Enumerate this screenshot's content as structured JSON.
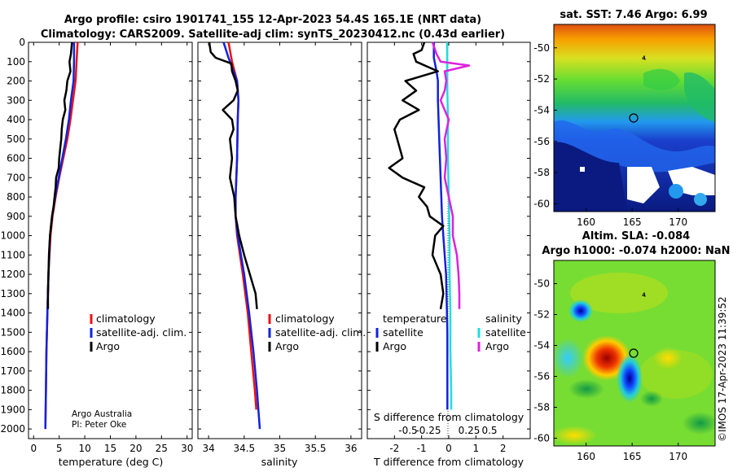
{
  "header": {
    "title_line1": "Argo profile: csiro 1901741_155 12-Apr-2023 54.4S 165.1E (NRT data)",
    "title_line2": "Climatology: CARS2009. Satellite-adj clim: synTS_20230412.nc (0.43d earlier)"
  },
  "colors": {
    "climatology": "#ee1111",
    "satellite": "#1122dd",
    "argo": "#000000",
    "sat_salinity": "#22dddd",
    "argo_salinity_diff": "#dd22dd"
  },
  "footer": {
    "credit1": "Argo Australia",
    "credit2": "PI: Peter Oke",
    "imos_stamp": "©IMOS 17-Apr-2023 11:39:52"
  },
  "legends": {
    "climatology": "climatology",
    "satellite_adj": "satellite-adj. clim.",
    "argo": "Argo",
    "diff_temperature": "temperature",
    "diff_salinity": "salinity",
    "satellite": "satellite"
  },
  "chart_data": [
    {
      "type": "line",
      "id": "temperature",
      "xlabel": "temperature (deg C)",
      "ylabel": "",
      "xlim": [
        -1,
        31
      ],
      "ylim": [
        2050,
        0
      ],
      "xticks": [
        "0",
        "5",
        "10",
        "15",
        "20",
        "25",
        "30"
      ],
      "yticks": [
        "0",
        "100",
        "200",
        "300",
        "400",
        "500",
        "600",
        "700",
        "800",
        "900",
        "1000",
        "1100",
        "1200",
        "1300",
        "1400",
        "1500",
        "1600",
        "1700",
        "1800",
        "1900",
        "2000"
      ],
      "series": [
        {
          "name": "climatology",
          "depth": [
            0,
            100,
            200,
            300,
            400,
            500,
            600,
            700,
            800,
            900,
            1000,
            1200,
            1400,
            1600,
            1800,
            2000
          ],
          "values": [
            8.6,
            8.4,
            8.2,
            7.7,
            7.2,
            6.6,
            5.8,
            5.0,
            4.3,
            3.7,
            3.3,
            2.9,
            2.7,
            2.5,
            2.4,
            2.3
          ]
        },
        {
          "name": "satellite-adj. clim.",
          "depth": [
            0,
            100,
            200,
            300,
            400,
            500,
            600,
            700,
            800,
            900,
            1000,
            1200,
            1400,
            1600,
            1800,
            2000
          ],
          "values": [
            7.9,
            7.9,
            7.8,
            7.3,
            6.9,
            6.3,
            5.6,
            4.9,
            4.2,
            3.6,
            3.2,
            2.9,
            2.7,
            2.5,
            2.4,
            2.3
          ]
        },
        {
          "name": "Argo",
          "depth": [
            0,
            60,
            100,
            150,
            200,
            250,
            300,
            350,
            400,
            450,
            500,
            550,
            600,
            650,
            700,
            750,
            800,
            850,
            900,
            950,
            1000,
            1100,
            1200,
            1300,
            1380
          ],
          "values": [
            7.5,
            7.3,
            7.0,
            7.2,
            6.6,
            6.4,
            6.0,
            6.2,
            5.7,
            5.5,
            5.4,
            5.2,
            5.0,
            4.9,
            4.4,
            4.3,
            4.1,
            3.9,
            3.6,
            3.4,
            3.2,
            3.0,
            2.9,
            2.8,
            2.8
          ]
        }
      ]
    },
    {
      "type": "line",
      "id": "salinity",
      "xlabel": "salinity",
      "ylabel": "",
      "xlim": [
        33.85,
        36.15
      ],
      "ylim": [
        2050,
        0
      ],
      "xticks": [
        "34",
        "34.5",
        "35",
        "35.5",
        "36"
      ],
      "series": [
        {
          "name": "climatology",
          "depth": [
            0,
            100,
            200,
            300,
            400,
            600,
            800,
            900,
            1000,
            1200,
            1400,
            1600,
            1800,
            1900
          ],
          "values": [
            34.28,
            34.33,
            34.4,
            34.42,
            34.41,
            34.4,
            34.38,
            34.38,
            34.4,
            34.48,
            34.55,
            34.6,
            34.65,
            34.67
          ]
        },
        {
          "name": "satellite-adj. clim.",
          "depth": [
            0,
            80,
            150,
            200,
            300,
            400,
            600,
            800,
            900,
            1000,
            1200,
            1400,
            1600,
            1800,
            2000
          ],
          "values": [
            34.21,
            34.28,
            34.35,
            34.4,
            34.42,
            34.41,
            34.4,
            34.38,
            34.38,
            34.41,
            34.5,
            34.57,
            34.63,
            34.68,
            34.72
          ]
        },
        {
          "name": "Argo",
          "depth": [
            0,
            50,
            80,
            110,
            150,
            200,
            250,
            300,
            350,
            400,
            450,
            500,
            600,
            700,
            800,
            900,
            1000,
            1100,
            1200,
            1300,
            1380
          ],
          "values": [
            34.01,
            34.03,
            34.1,
            34.32,
            34.33,
            34.38,
            34.41,
            34.35,
            34.2,
            34.33,
            34.35,
            34.3,
            34.33,
            34.3,
            34.36,
            34.38,
            34.43,
            34.5,
            34.58,
            34.66,
            34.68
          ]
        }
      ]
    },
    {
      "type": "line",
      "id": "difference",
      "xlabel": "T difference from climatology",
      "x2label": "S difference from climatology",
      "xlim": [
        -3,
        3
      ],
      "ylim": [
        2050,
        0
      ],
      "xticks": [
        "-2",
        "-1",
        "0",
        "1",
        "2"
      ],
      "x2lim": [
        -1,
        1
      ],
      "x2ticks": [
        "-0.5",
        "-0.25",
        "0",
        "0.25",
        "0.5"
      ],
      "series": [
        {
          "name": "temperature satellite",
          "depth": [
            0,
            80,
            150,
            200,
            300,
            500,
            700,
            900,
            1000,
            1200,
            1500,
            1700,
            1900
          ],
          "values": [
            -0.55,
            -0.55,
            -0.45,
            -0.4,
            -0.4,
            -0.35,
            -0.3,
            -0.25,
            -0.2,
            -0.1,
            -0.05,
            -0.05,
            -0.05
          ]
        },
        {
          "name": "temperature Argo",
          "depth": [
            0,
            40,
            60,
            100,
            150,
            200,
            250,
            300,
            350,
            400,
            450,
            500,
            550,
            600,
            650,
            700,
            750,
            800,
            850,
            900,
            950,
            1000,
            1100,
            1200,
            1300,
            1380
          ],
          "values": [
            -0.9,
            -1.0,
            -1.3,
            -1.2,
            -0.4,
            -1.6,
            -1.2,
            -1.7,
            -1.1,
            -1.8,
            -2.0,
            -1.9,
            -1.8,
            -1.7,
            -2.2,
            -1.7,
            -0.9,
            -1.1,
            -0.8,
            -0.7,
            -0.2,
            -0.5,
            -0.6,
            -0.3,
            -0.2,
            -0.3
          ]
        },
        {
          "name": "salinity satellite",
          "depth": [
            0,
            100,
            200,
            400,
            600,
            800,
            1000,
            1200,
            1400,
            1600,
            1800,
            1900
          ],
          "values": [
            -0.02,
            -0.02,
            -0.02,
            -0.01,
            -0.01,
            0.0,
            0.01,
            0.01,
            0.02,
            0.02,
            0.03,
            0.03
          ]
        },
        {
          "name": "salinity Argo",
          "depth": [
            0,
            60,
            100,
            120,
            150,
            200,
            250,
            300,
            400,
            500,
            600,
            700,
            800,
            900,
            1000,
            1100,
            1200,
            1300,
            1380
          ],
          "values": [
            -0.2,
            -0.15,
            -0.1,
            0.25,
            -0.05,
            -0.03,
            -0.05,
            -0.1,
            0.0,
            -0.05,
            -0.03,
            -0.05,
            0.0,
            0.05,
            0.05,
            0.1,
            0.12,
            0.13,
            0.13
          ]
        }
      ]
    },
    {
      "type": "heatmap",
      "id": "sst_map",
      "title": "sat. SST: 7.46 Argo: 6.99",
      "xticks": [
        "160",
        "165",
        "170"
      ],
      "yticks": [
        "-50",
        "-52",
        "-54",
        "-56",
        "-58",
        "-60"
      ],
      "xlim": [
        156.5,
        174
      ],
      "ylim": [
        -60.5,
        -48.5
      ],
      "profile_location": [
        165.1,
        -54.4
      ]
    },
    {
      "type": "heatmap",
      "id": "sla_map",
      "title": "Altim. SLA: -0.084",
      "subtitle": "Argo h1000: -0.074 h2000: NaN",
      "xticks": [
        "160",
        "165",
        "170"
      ],
      "yticks": [
        "-50",
        "-52",
        "-54",
        "-56",
        "-58",
        "-60"
      ],
      "xlim": [
        156.5,
        174
      ],
      "ylim": [
        -60.5,
        -48.5
      ],
      "profile_location": [
        165.1,
        -54.4
      ]
    }
  ]
}
